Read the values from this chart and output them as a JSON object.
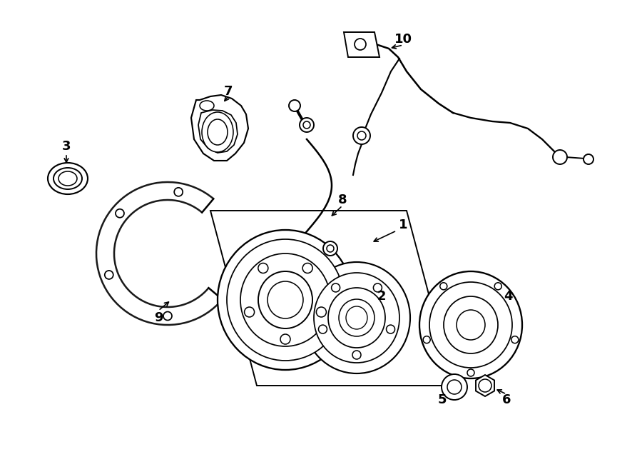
{
  "background_color": "#ffffff",
  "line_color": "#1a1a1a",
  "lw": 1.4,
  "fig_width": 9.0,
  "fig_height": 6.61,
  "dpi": 100
}
